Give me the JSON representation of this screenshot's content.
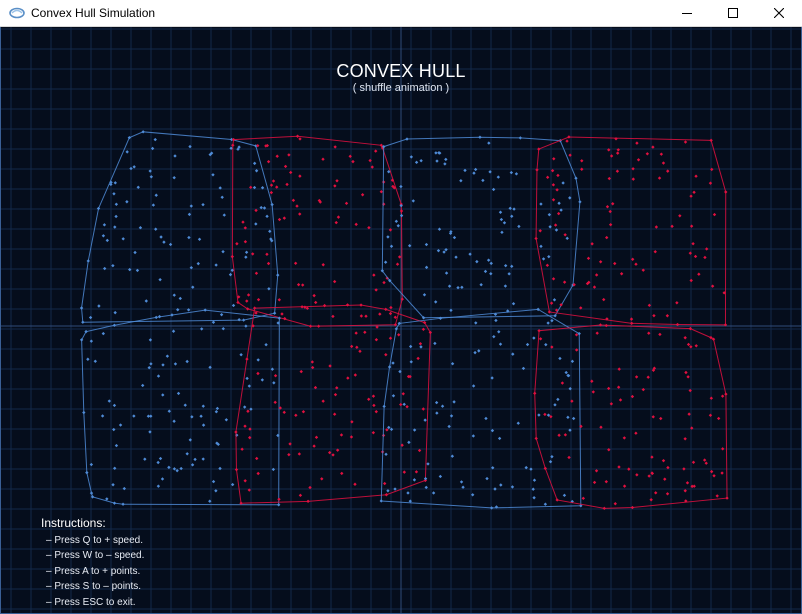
{
  "window": {
    "title": "Convex Hull Simulation",
    "icon": "app-icon",
    "controls": {
      "minimize": "minimize-icon",
      "maximize": "maximize-icon",
      "close": "close-icon"
    }
  },
  "heading": {
    "title": "CONVEX HULL",
    "subtitle": "( shuffle animation )"
  },
  "instructions": {
    "title": "Instructions:",
    "items": [
      "– Press Q to + speed.",
      "– Press W to – speed.",
      "– Press A to + points.",
      "– Press S to – points.",
      "– Press ESC to exit."
    ]
  },
  "colors": {
    "background": "#050d1c",
    "grid": "#14294a",
    "axis": "#2f4b78",
    "blue": "#4f8bd6",
    "red": "#e0103f"
  }
}
